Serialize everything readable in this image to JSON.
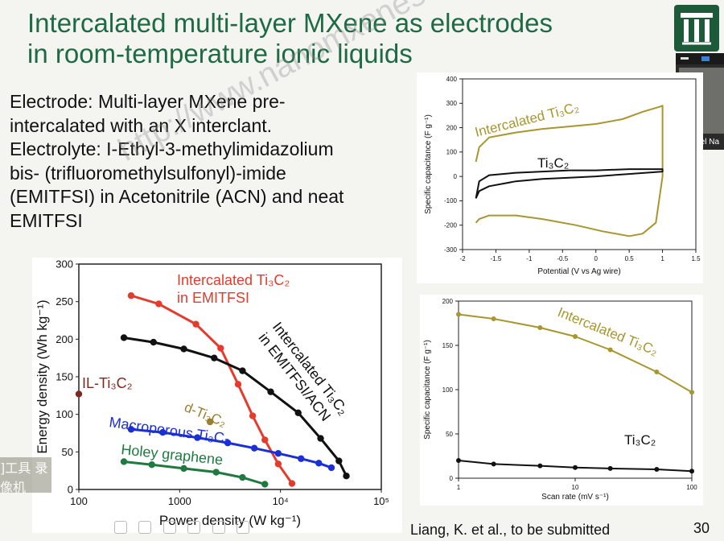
{
  "slide": {
    "title_line1": "Intercalated multi-layer MXene as electrodes",
    "title_line2": "in room-temperature ionic liquids",
    "body_lines": [
      "Electrode: Multi-layer MXene pre-",
      "intercalated with an X interclant.",
      "Electrolyte: I-Ethyl-3-methylimidazolium",
      "bis- (trifluoromethylsulfonyl)-imide",
      "(EMITFSI) in Acetonitrile (ACN) and neat",
      "EMITFSI"
    ],
    "reference": "Liang, K. et al., to be submitted",
    "page_number": "30",
    "video_name": "Michael Na",
    "watermark": "http://www.nanomxenes.com",
    "corner_logo_text": "]工具 录像机",
    "colors": {
      "title": "#1e6b43",
      "gold": "#a8962e",
      "red": "#e53b2c",
      "blue": "#1a2fd6",
      "green": "#1f7a3f",
      "brown": "#7a2a22",
      "dgold": "#9a7f2e"
    }
  },
  "chart_data": [
    {
      "type": "line",
      "xlabel": "Power density (W kg⁻¹)",
      "ylabel": "Energy density (Wh kg⁻¹)",
      "xscale": "log",
      "xlim": [
        100,
        100000
      ],
      "ylim": [
        0,
        300
      ],
      "yticks": [
        "0",
        "50",
        "100",
        "150",
        "200",
        "250",
        "300"
      ],
      "xticks": [
        "100",
        "1000",
        "10⁴",
        "10⁵"
      ],
      "series": [
        {
          "name": "Intercalated Ti3C2 in EMITFSI",
          "label_lines": [
            "Intercalated Ti₃C₂",
            "in EMITFSI"
          ],
          "color": "#e53b2c",
          "x": [
            330,
            620,
            1450,
            2550,
            3800,
            5300,
            7000,
            9500,
            13000
          ],
          "y": [
            258,
            247,
            220,
            188,
            140,
            98,
            66,
            34,
            8
          ]
        },
        {
          "name": "Intercalated Ti3C2 in EMITFSI/ACN",
          "label_lines": [
            "Intercalated Ti₃C₂",
            "in EMITFSI/ACN"
          ],
          "color": "#111111",
          "x": [
            280,
            550,
            1100,
            2200,
            4200,
            8000,
            15000,
            25000,
            38000,
            45000
          ],
          "y": [
            202,
            196,
            187,
            175,
            158,
            130,
            102,
            68,
            38,
            18
          ]
        },
        {
          "name": "Macroporous Ti3C2",
          "label_lines": [
            "Macroporous Ti₃C₂"
          ],
          "color": "#1a2fd6",
          "x": [
            330,
            680,
            1500,
            3000,
            5500,
            9500,
            16000,
            24000,
            32000
          ],
          "y": [
            80,
            76,
            69,
            62,
            55,
            48,
            41,
            35,
            29
          ]
        },
        {
          "name": "Holey graphene",
          "label_lines": [
            "Holey graphene"
          ],
          "color": "#1f7a3f",
          "x": [
            280,
            530,
            1100,
            2300,
            4200,
            7000
          ],
          "y": [
            37,
            33,
            28,
            23,
            16,
            7
          ]
        },
        {
          "name": "IL-Ti3C2",
          "label_lines": [
            "IL-Ti₃C₂"
          ],
          "color": "#7a2a22",
          "x": [
            100
          ],
          "y": [
            127
          ]
        },
        {
          "name": "d-Ti3C2",
          "label_lines": [
            "d-Ti₃C₂"
          ],
          "color": "#9a7f2e",
          "x": [
            2000
          ],
          "y": [
            90
          ]
        }
      ]
    },
    {
      "type": "line",
      "xlabel": "Potential (V vs Ag wire)",
      "ylabel": "Specific capacitance (F g⁻¹)",
      "xlim": [
        -2,
        1.5
      ],
      "ylim": [
        -300,
        400
      ],
      "xticks": [
        "-2",
        "-1.5",
        "-1",
        "-0.5",
        "0",
        "0.5",
        "1",
        "1.5"
      ],
      "yticks": [
        "-300",
        "-200",
        "-100",
        "0",
        "100",
        "200",
        "300",
        "400"
      ],
      "series": [
        {
          "name": "Intercalated Ti3C2",
          "label_lines": [
            "Intercalated Ti₃C₂"
          ],
          "color": "#a8962e",
          "x": [
            -1.8,
            -1.75,
            -1.6,
            -1.2,
            -0.8,
            -0.4,
            0.0,
            0.4,
            0.7,
            0.95,
            1.0,
            1.0,
            0.9,
            0.7,
            0.5,
            0.1,
            -0.3,
            -0.8,
            -1.2,
            -1.6,
            -1.75,
            -1.8
          ],
          "y": [
            60,
            120,
            160,
            180,
            195,
            205,
            215,
            235,
            265,
            285,
            290,
            0,
            -190,
            -235,
            -245,
            -225,
            -200,
            -175,
            -160,
            -160,
            -175,
            -190
          ]
        },
        {
          "name": "Ti3C2",
          "label_lines": [
            "Ti₃C₂"
          ],
          "color": "#111111",
          "x": [
            -1.8,
            -1.75,
            -1.6,
            -1.2,
            -0.8,
            -0.4,
            0.0,
            0.5,
            1.0,
            1.0,
            0.5,
            0.0,
            -0.4,
            -0.8,
            -1.2,
            -1.6,
            -1.75,
            -1.8
          ],
          "y": [
            -90,
            -20,
            5,
            15,
            20,
            25,
            25,
            30,
            30,
            20,
            10,
            0,
            -5,
            -10,
            -20,
            -40,
            -60,
            -90
          ]
        }
      ]
    },
    {
      "type": "line",
      "xlabel": "Scan rate (mV s⁻¹)",
      "ylabel": "Specific capacitance (F g⁻¹)",
      "xscale": "log",
      "xlim": [
        1,
        100
      ],
      "ylim": [
        0,
        200
      ],
      "xticks": [
        "1",
        "10",
        "100"
      ],
      "yticks": [
        "0",
        "50",
        "100",
        "150",
        "200"
      ],
      "series": [
        {
          "name": "Intercalated Ti3C2",
          "label_lines": [
            "Intercalated Ti₃C₂"
          ],
          "color": "#a8962e",
          "x": [
            1,
            2,
            5,
            10,
            20,
            50,
            100
          ],
          "y": [
            185,
            180,
            170,
            160,
            145,
            120,
            97
          ]
        },
        {
          "name": "Ti3C2",
          "label_lines": [
            "Ti₃C₂"
          ],
          "color": "#111111",
          "x": [
            1,
            2,
            5,
            10,
            20,
            50,
            100
          ],
          "y": [
            20,
            16,
            14,
            12,
            11,
            10,
            8
          ]
        }
      ]
    }
  ]
}
